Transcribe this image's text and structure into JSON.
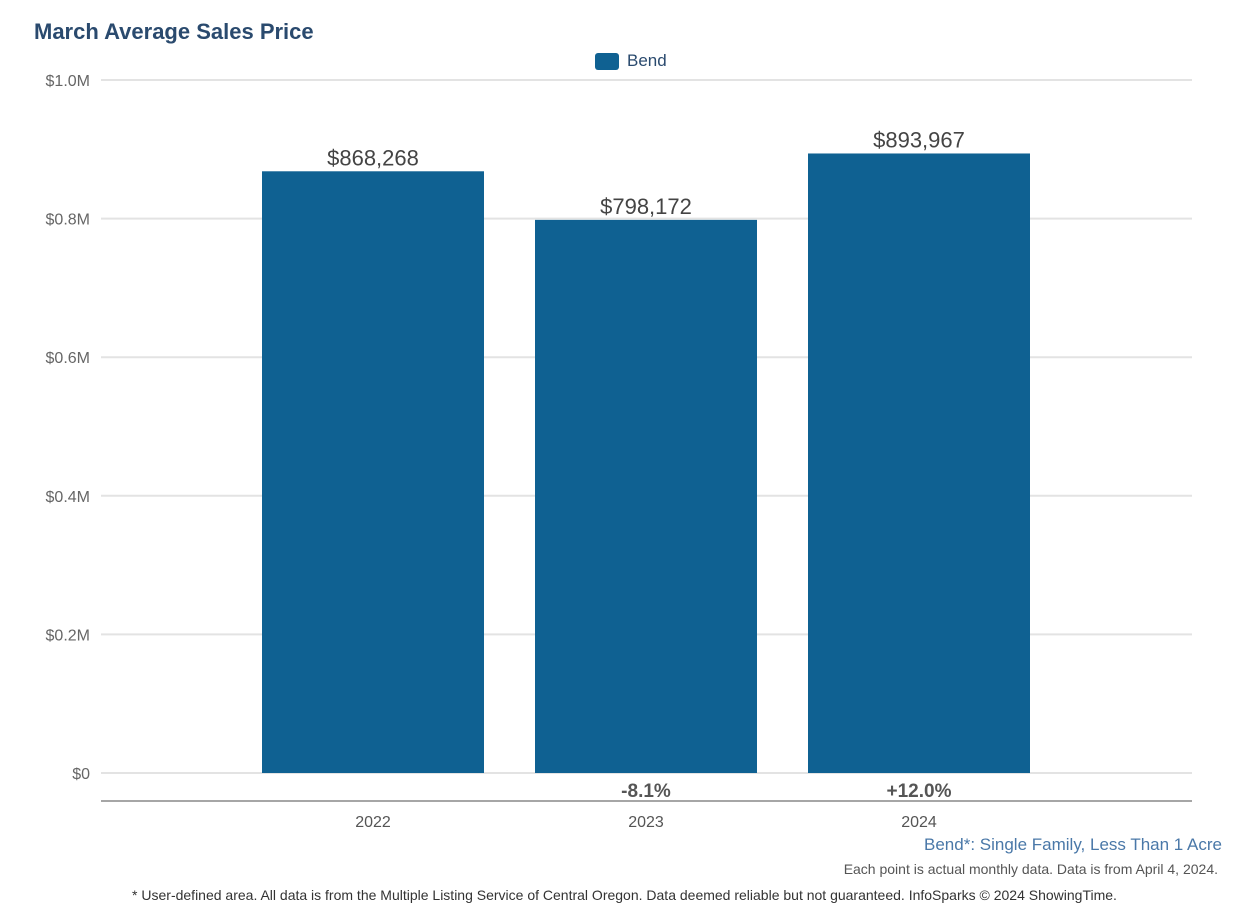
{
  "chart_data": {
    "type": "bar",
    "title": "March Average Sales Price",
    "categories": [
      "2022",
      "2023",
      "2024"
    ],
    "series": [
      {
        "name": "Bend",
        "values": [
          868268,
          798172,
          893967
        ],
        "color": "#0f6192"
      }
    ],
    "data_labels": [
      "$868,268",
      "$798,172",
      "$893,967"
    ],
    "change_labels": [
      "",
      "-8.1%",
      "+12.0%"
    ],
    "ylim": [
      0,
      1000000
    ],
    "yticks": [
      0,
      200000,
      400000,
      600000,
      800000,
      1000000
    ],
    "ytick_labels": [
      "$0",
      "$0.2M",
      "$0.4M",
      "$0.6M",
      "$0.8M",
      "$1.0M"
    ],
    "grid": true,
    "legend": "top-center"
  },
  "notes": {
    "area": "Bend*: Single Family, Less Than 1 Acre",
    "data_note": "Each point is actual monthly data. Data is from April 4, 2024.",
    "footer": "* User-defined area. All data is from the Multiple Listing Service of Central Oregon. Data deemed reliable but not guaranteed. InfoSparks © 2024 ShowingTime."
  }
}
